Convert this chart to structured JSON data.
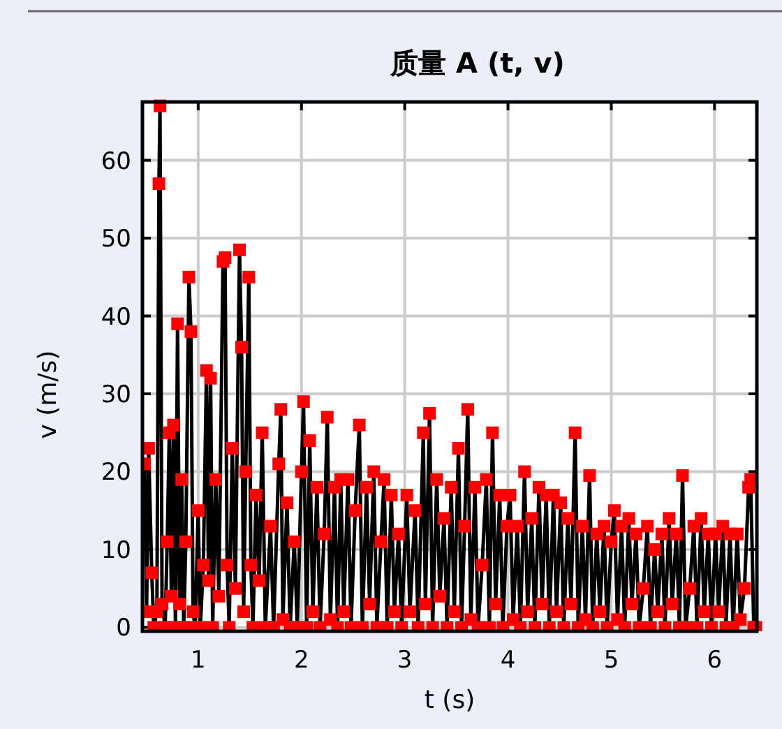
{
  "chart_data": {
    "type": "line",
    "title": "质量 A (t, v)",
    "xlabel": "t (s)",
    "ylabel": "v (m/s)",
    "xlim": [
      0.46,
      6.41
    ],
    "ylim": [
      -0.5,
      67.5
    ],
    "xticks": [
      1,
      2,
      3,
      4,
      5,
      6
    ],
    "yticks": [
      0,
      10,
      20,
      30,
      40,
      50,
      60
    ],
    "grid": true,
    "marker": "square",
    "line_style": "solid",
    "series": [
      {
        "color": "#ff0000",
        "x": [
          0.48,
          0.5,
          0.52,
          0.55,
          0.57,
          0.6,
          0.62,
          0.63,
          0.65,
          0.68,
          0.7,
          0.72,
          0.74,
          0.76,
          0.78,
          0.8,
          0.82,
          0.84,
          0.86,
          0.88,
          0.91,
          0.93,
          0.95,
          0.97,
          1.0,
          1.02,
          1.05,
          1.08,
          1.1,
          1.12,
          1.14,
          1.17,
          1.2,
          1.24,
          1.26,
          1.28,
          1.3,
          1.33,
          1.36,
          1.4,
          1.42,
          1.44,
          1.46,
          1.49,
          1.51,
          1.53,
          1.56,
          1.59,
          1.62,
          1.65,
          1.7,
          1.73,
          1.78,
          1.8,
          1.82,
          1.86,
          1.89,
          1.93,
          1.96,
          2.0,
          2.02,
          2.05,
          2.08,
          2.11,
          2.15,
          2.18,
          2.22,
          2.25,
          2.28,
          2.32,
          2.35,
          2.38,
          2.41,
          2.45,
          2.48,
          2.52,
          2.56,
          2.59,
          2.63,
          2.66,
          2.7,
          2.73,
          2.77,
          2.8,
          2.83,
          2.87,
          2.9,
          2.94,
          2.97,
          3.02,
          3.05,
          3.1,
          3.13,
          3.18,
          3.2,
          3.24,
          3.27,
          3.31,
          3.34,
          3.38,
          3.41,
          3.45,
          3.48,
          3.52,
          3.55,
          3.58,
          3.61,
          3.64,
          3.68,
          3.71,
          3.75,
          3.79,
          3.82,
          3.85,
          3.88,
          3.92,
          3.95,
          3.99,
          4.02,
          4.05,
          4.09,
          4.12,
          4.16,
          4.19,
          4.23,
          4.26,
          4.3,
          4.33,
          4.37,
          4.4,
          4.44,
          4.47,
          4.51,
          4.54,
          4.58,
          4.61,
          4.65,
          4.68,
          4.72,
          4.75,
          4.79,
          4.82,
          4.86,
          4.89,
          4.93,
          4.96,
          5.0,
          5.03,
          5.06,
          5.1,
          5.13,
          5.17,
          5.2,
          5.24,
          5.27,
          5.31,
          5.35,
          5.38,
          5.42,
          5.45,
          5.49,
          5.52,
          5.56,
          5.59,
          5.63,
          5.66,
          5.69,
          5.72,
          5.76,
          5.8,
          5.83,
          5.87,
          5.9,
          5.94,
          5.97,
          6.01,
          6.04,
          6.08,
          6.11,
          6.15,
          6.18,
          6.22,
          6.25,
          6.29,
          6.33,
          6.35,
          6.38,
          6.4
        ],
        "values": [
          21,
          2,
          23,
          7,
          0,
          2,
          57,
          67,
          3,
          0,
          11,
          25,
          4,
          26,
          0,
          39,
          3,
          19,
          0,
          11,
          45,
          38,
          2,
          0,
          15,
          0,
          8,
          33,
          6,
          32,
          0,
          19,
          4,
          47,
          47.5,
          8,
          0,
          23,
          5,
          48.5,
          36,
          2,
          20,
          45,
          8,
          0,
          17,
          6,
          25,
          0,
          13,
          0,
          21,
          28,
          1,
          16,
          0,
          11,
          0,
          20,
          29,
          0,
          24,
          2,
          18,
          0,
          12,
          27,
          1,
          18,
          0,
          19,
          2,
          19,
          0,
          15,
          26,
          0,
          18,
          3,
          20,
          0,
          11,
          19,
          0,
          17,
          2,
          12,
          0,
          17,
          2,
          15,
          0,
          25,
          3,
          27.5,
          0,
          19,
          4,
          14,
          0,
          18,
          2,
          23,
          0,
          13,
          28,
          1,
          18,
          0,
          8,
          19,
          0,
          25,
          3,
          17,
          0,
          13,
          17,
          1,
          13,
          0,
          20,
          2,
          14,
          0,
          18,
          3,
          17,
          0,
          17,
          2,
          16,
          0,
          14,
          3,
          25,
          0,
          13,
          1,
          19.5,
          0,
          12,
          2,
          13,
          0,
          11,
          15,
          1,
          13,
          0,
          14,
          3,
          12,
          0,
          5,
          13,
          0,
          10,
          2,
          12,
          0,
          14,
          3,
          12,
          0,
          19.5,
          0,
          5,
          13,
          0,
          14,
          2,
          12,
          0,
          12,
          2,
          13,
          0,
          12,
          0,
          12,
          1,
          5,
          18,
          19,
          0,
          0
        ]
      }
    ]
  }
}
